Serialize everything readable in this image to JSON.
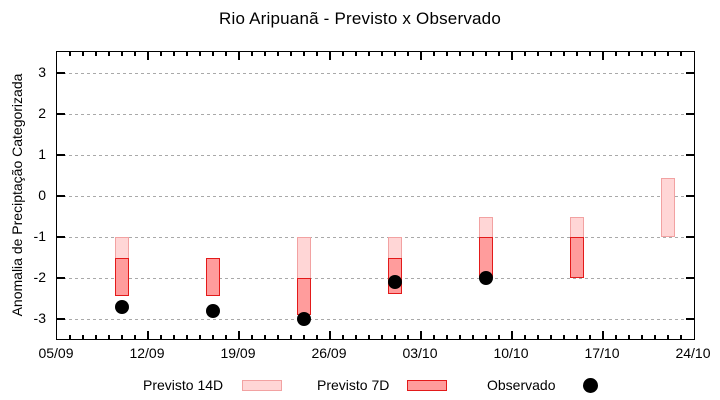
{
  "chart_data": {
    "type": "bar",
    "title": "Rio Aripuanã - Previsto x Observado",
    "ylabel": "Anomalia de Preciptação Categorizada",
    "ylim": [
      -3.5,
      3.5
    ],
    "yticks": [
      -3,
      -2,
      -1,
      0,
      1,
      2,
      3
    ],
    "xtick_labels": [
      "05/09",
      "12/09",
      "19/09",
      "26/09",
      "03/10",
      "10/10",
      "17/10",
      "24/10"
    ],
    "xtick_days": [
      0,
      7,
      14,
      21,
      28,
      35,
      42,
      49
    ],
    "x_total_days": 49,
    "minor_x_tick_every_days": 1,
    "grid": "horizontal-dashed",
    "grid_color": "#a9a9a9",
    "axis_color": "#000000",
    "background": "#ffffff",
    "legend_position": "bottom",
    "series": [
      {
        "name": "Previsto 14D",
        "type": "range-bar",
        "fill": "#ffd6d6",
        "border": "#f2a2a2",
        "points": [
          {
            "date": "10/09",
            "day": 5,
            "low": -2.45,
            "high": -1.0
          },
          {
            "date": "24/09",
            "day": 19,
            "low": -2.9,
            "high": -1.0
          },
          {
            "date": "01/10",
            "day": 26,
            "low": -2.4,
            "high": -1.0
          },
          {
            "date": "08/10",
            "day": 33,
            "low": -2.0,
            "high": -0.5
          },
          {
            "date": "15/10",
            "day": 40,
            "low": -2.0,
            "high": -0.5
          },
          {
            "date": "22/10",
            "day": 47,
            "low": -1.0,
            "high": 0.45
          }
        ]
      },
      {
        "name": "Previsto 7D",
        "type": "range-bar",
        "fill": "#ff9c9c",
        "border": "#e31a1a",
        "points": [
          {
            "date": "10/09",
            "day": 5,
            "low": -2.45,
            "high": -1.5
          },
          {
            "date": "17/09",
            "day": 12,
            "low": -2.45,
            "high": -1.5
          },
          {
            "date": "24/09",
            "day": 19,
            "low": -2.9,
            "high": -2.0
          },
          {
            "date": "01/10",
            "day": 26,
            "low": -2.4,
            "high": -1.5
          },
          {
            "date": "08/10",
            "day": 33,
            "low": -2.0,
            "high": -1.0
          },
          {
            "date": "15/10",
            "day": 40,
            "low": -2.0,
            "high": -1.0
          }
        ]
      },
      {
        "name": "Observado",
        "type": "scatter",
        "color": "#000000",
        "points": [
          {
            "date": "10/09",
            "day": 5,
            "value": -2.7
          },
          {
            "date": "17/09",
            "day": 12,
            "value": -2.8
          },
          {
            "date": "24/09",
            "day": 19,
            "value": -3.0
          },
          {
            "date": "01/10",
            "day": 26,
            "value": -2.1
          },
          {
            "date": "08/10",
            "day": 33,
            "value": -2.0
          }
        ]
      }
    ]
  }
}
